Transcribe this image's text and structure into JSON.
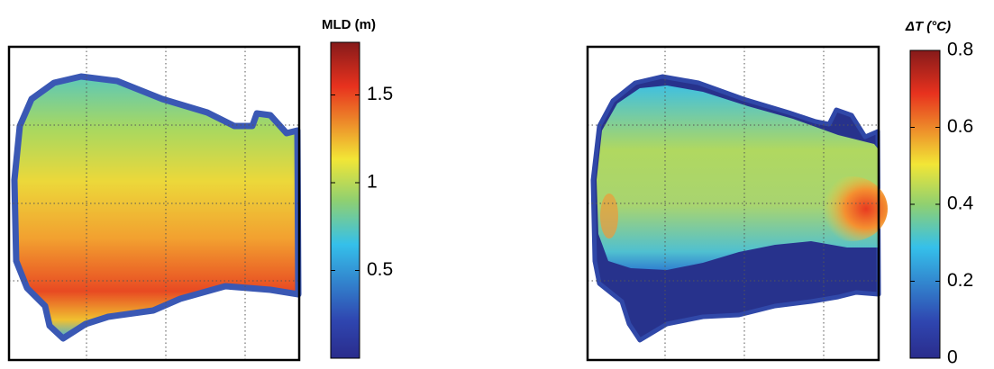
{
  "chart_data": [
    {
      "type": "heatmap",
      "colorbar_label": "MLD (m)",
      "colormap": "jet",
      "clim": [
        0,
        1.8
      ],
      "cticks": [
        0.5,
        1,
        1.5
      ]
    },
    {
      "type": "heatmap",
      "colorbar_label": "ΔT (°C)",
      "colormap": "jet",
      "clim": [
        0,
        0.8
      ],
      "cticks": [
        0,
        0.2,
        0.4,
        0.6,
        0.8
      ]
    }
  ]
}
